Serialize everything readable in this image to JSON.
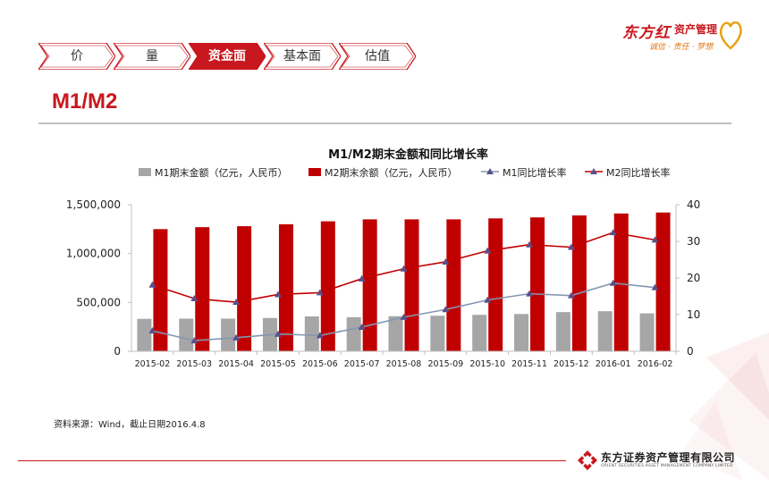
{
  "logo": {
    "brand": "东方红",
    "sub": "资产管理",
    "slogan": "诚信 · 责任 · 梦想"
  },
  "nav": {
    "tabs": [
      {
        "label": "价"
      },
      {
        "label": "量"
      },
      {
        "label": "资金面"
      },
      {
        "label": "基本面"
      },
      {
        "label": "估值"
      }
    ],
    "active_index": 2
  },
  "page": {
    "title": "M1/M2"
  },
  "colors": {
    "accent": "#c8171e",
    "m1_bar": "#a6a6a6",
    "m2_bar": "#c00000",
    "m1_line": "#8497b0",
    "m2_line": "#c00000",
    "marker": "#5b4f8c"
  },
  "chart_data": {
    "type": "bar",
    "title": "M1/M2期末金额和同比增长率",
    "categories": [
      "2015-02",
      "2015-03",
      "2015-04",
      "2015-05",
      "2015-06",
      "2015-07",
      "2015-08",
      "2015-09",
      "2015-10",
      "2015-11",
      "2015-12",
      "2016-01",
      "2016-02"
    ],
    "left_axis": {
      "min": 0,
      "max": 1500000,
      "ticks": [
        0,
        500000,
        1000000,
        1500000
      ],
      "tick_labels": [
        "0",
        "500,000",
        "1,000,000",
        "1,500,000"
      ]
    },
    "right_axis": {
      "min": 0,
      "max": 40,
      "ticks": [
        0,
        10,
        20,
        30,
        40
      ],
      "tick_labels": [
        "0",
        "10",
        "20",
        "30",
        "40"
      ]
    },
    "legend_position": "top",
    "series": [
      {
        "name": "M1期末金额（亿元，人民币）",
        "type": "bar",
        "axis": "left",
        "values": [
          332000,
          334000,
          334000,
          341000,
          357000,
          349000,
          359000,
          364000,
          373000,
          381000,
          401000,
          410000,
          388000
        ]
      },
      {
        "name": "M2期末余额（亿元，人民币）",
        "type": "bar",
        "axis": "left",
        "values": [
          1250000,
          1270000,
          1280000,
          1300000,
          1330000,
          1350000,
          1350000,
          1350000,
          1360000,
          1370000,
          1390000,
          1410000,
          1420000
        ]
      },
      {
        "name": "M1同比增长率",
        "type": "line",
        "axis": "right",
        "values": [
          5.6,
          2.9,
          3.7,
          4.7,
          4.3,
          6.6,
          9.3,
          11.4,
          14.0,
          15.7,
          15.2,
          18.6,
          17.4
        ]
      },
      {
        "name": "M2同比增长率",
        "type": "line",
        "axis": "right",
        "values": [
          18.1,
          14.4,
          13.4,
          15.5,
          16.0,
          19.8,
          22.5,
          24.4,
          27.4,
          29.1,
          28.4,
          32.4,
          30.4
        ]
      }
    ]
  },
  "source": {
    "text": "资料来源：Wind，截止日期2016.4.8"
  },
  "footer": {
    "company_cn": "东方证券资产管理有限公司",
    "company_en": "ORIENT SECURITIES ASSET MANAGEMENT COMPANY LIMITED"
  }
}
